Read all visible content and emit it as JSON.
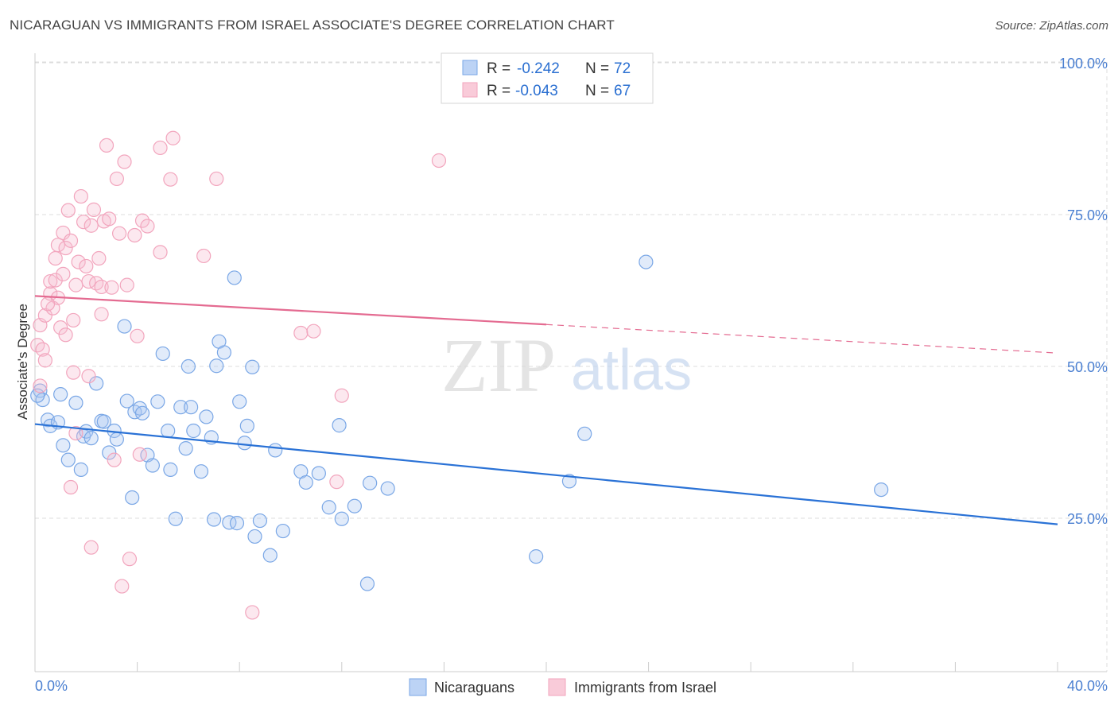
{
  "title": "NICARAGUAN VS IMMIGRANTS FROM ISRAEL ASSOCIATE'S DEGREE CORRELATION CHART",
  "source": "Source: ZipAtlas.com",
  "watermark": {
    "zip": "ZIP",
    "atlas": "atlas"
  },
  "colors": {
    "blue": "#7aa7e6",
    "blue_line": "#2a72d6",
    "pink": "#f2a5bd",
    "pink_line": "#e46b91",
    "tick_text": "#4a7fd1"
  },
  "stats_legend": [
    {
      "r_label": "R =",
      "r": "-0.242",
      "n_label": "N =",
      "n": "72",
      "color": "blue"
    },
    {
      "r_label": "R =",
      "r": "-0.043",
      "n_label": "N =",
      "n": "67",
      "color": "pink"
    }
  ],
  "chart_data": {
    "type": "scatter",
    "title": "NICARAGUAN VS IMMIGRANTS FROM ISRAEL ASSOCIATE'S DEGREE CORRELATION CHART",
    "xlabel": "",
    "ylabel": "Associate's Degree",
    "xlim": [
      0,
      40
    ],
    "ylim": [
      0,
      100
    ],
    "x_tick_labels": [
      "0.0%",
      "40.0%"
    ],
    "y_ticks": [
      25,
      50,
      75,
      100
    ],
    "y_tick_labels": [
      "25.0%",
      "50.0%",
      "75.0%",
      "100.0%"
    ],
    "grid": true,
    "legend_position": "bottom-center",
    "series": [
      {
        "name": "Nicaraguans",
        "color": "blue",
        "trend": {
          "x": [
            0,
            40
          ],
          "y": [
            40.5,
            24.0
          ],
          "dashed_from": null
        },
        "points": [
          [
            0.2,
            46.0
          ],
          [
            0.3,
            44.5
          ],
          [
            0.5,
            41.2
          ],
          [
            0.6,
            40.2
          ],
          [
            0.9,
            40.8
          ],
          [
            1.0,
            45.4
          ],
          [
            1.1,
            37.0
          ],
          [
            1.3,
            34.6
          ],
          [
            1.6,
            44.0
          ],
          [
            1.8,
            33.0
          ],
          [
            1.9,
            38.5
          ],
          [
            2.0,
            39.3
          ],
          [
            2.2,
            38.2
          ],
          [
            2.4,
            47.2
          ],
          [
            2.6,
            41.0
          ],
          [
            2.7,
            40.9
          ],
          [
            2.9,
            35.8
          ],
          [
            3.1,
            39.4
          ],
          [
            3.2,
            38.0
          ],
          [
            3.5,
            56.6
          ],
          [
            3.6,
            44.3
          ],
          [
            3.8,
            28.4
          ],
          [
            3.9,
            42.5
          ],
          [
            4.1,
            43.1
          ],
          [
            4.2,
            42.3
          ],
          [
            4.4,
            35.4
          ],
          [
            4.6,
            33.7
          ],
          [
            4.8,
            44.2
          ],
          [
            5.0,
            52.1
          ],
          [
            5.2,
            39.4
          ],
          [
            5.3,
            33.0
          ],
          [
            5.5,
            24.9
          ],
          [
            5.7,
            43.3
          ],
          [
            5.9,
            36.5
          ],
          [
            6.0,
            50.0
          ],
          [
            6.1,
            43.3
          ],
          [
            6.2,
            39.4
          ],
          [
            6.5,
            32.7
          ],
          [
            6.7,
            41.7
          ],
          [
            6.9,
            38.3
          ],
          [
            7.0,
            24.8
          ],
          [
            7.1,
            50.1
          ],
          [
            7.2,
            54.1
          ],
          [
            7.4,
            52.3
          ],
          [
            7.6,
            24.3
          ],
          [
            7.8,
            64.6
          ],
          [
            7.9,
            24.2
          ],
          [
            8.0,
            44.2
          ],
          [
            8.2,
            37.4
          ],
          [
            8.3,
            40.2
          ],
          [
            8.5,
            49.9
          ],
          [
            8.6,
            22.0
          ],
          [
            8.8,
            24.6
          ],
          [
            9.2,
            18.9
          ],
          [
            9.4,
            36.2
          ],
          [
            9.7,
            22.9
          ],
          [
            10.4,
            32.7
          ],
          [
            10.6,
            30.9
          ],
          [
            11.1,
            32.4
          ],
          [
            11.5,
            26.8
          ],
          [
            11.9,
            40.3
          ],
          [
            12.0,
            24.9
          ],
          [
            12.5,
            27.0
          ],
          [
            13.0,
            14.2
          ],
          [
            13.1,
            30.8
          ],
          [
            13.8,
            29.9
          ],
          [
            19.6,
            18.7
          ],
          [
            20.9,
            31.1
          ],
          [
            21.5,
            38.9
          ],
          [
            23.9,
            67.2
          ],
          [
            33.1,
            29.7
          ],
          [
            0.1,
            45.2
          ]
        ]
      },
      {
        "name": "Immigrants from Israel",
        "color": "pink",
        "trend": {
          "x": [
            0,
            40
          ],
          "y": [
            61.6,
            52.2
          ],
          "dashed_from": 20
        },
        "points": [
          [
            0.1,
            53.5
          ],
          [
            0.2,
            56.8
          ],
          [
            0.3,
            52.8
          ],
          [
            0.4,
            51.0
          ],
          [
            0.4,
            58.4
          ],
          [
            0.6,
            62.0
          ],
          [
            0.6,
            64.0
          ],
          [
            0.7,
            59.6
          ],
          [
            0.8,
            64.2
          ],
          [
            0.8,
            67.8
          ],
          [
            0.9,
            70.0
          ],
          [
            0.9,
            61.3
          ],
          [
            1.0,
            56.4
          ],
          [
            1.1,
            65.2
          ],
          [
            1.1,
            72.0
          ],
          [
            1.2,
            69.5
          ],
          [
            1.3,
            75.7
          ],
          [
            1.4,
            70.7
          ],
          [
            1.5,
            57.6
          ],
          [
            1.5,
            49.0
          ],
          [
            1.6,
            63.4
          ],
          [
            1.7,
            67.2
          ],
          [
            1.8,
            78.0
          ],
          [
            1.9,
            73.8
          ],
          [
            2.0,
            66.5
          ],
          [
            2.1,
            64.0
          ],
          [
            2.1,
            48.4
          ],
          [
            2.2,
            73.2
          ],
          [
            2.3,
            75.8
          ],
          [
            2.4,
            63.7
          ],
          [
            2.5,
            67.8
          ],
          [
            2.6,
            58.6
          ],
          [
            2.6,
            63.1
          ],
          [
            2.7,
            73.9
          ],
          [
            2.8,
            86.4
          ],
          [
            2.9,
            74.3
          ],
          [
            3.0,
            63.0
          ],
          [
            3.1,
            34.6
          ],
          [
            3.2,
            80.9
          ],
          [
            3.3,
            71.9
          ],
          [
            3.4,
            13.8
          ],
          [
            3.5,
            83.7
          ],
          [
            3.6,
            63.4
          ],
          [
            3.7,
            18.3
          ],
          [
            3.9,
            71.6
          ],
          [
            4.0,
            55.0
          ],
          [
            4.1,
            35.5
          ],
          [
            4.2,
            74.0
          ],
          [
            4.4,
            73.1
          ],
          [
            4.9,
            68.8
          ],
          [
            4.9,
            86.0
          ],
          [
            5.3,
            80.8
          ],
          [
            5.4,
            87.6
          ],
          [
            6.6,
            68.2
          ],
          [
            7.1,
            80.9
          ],
          [
            8.5,
            9.5
          ],
          [
            10.4,
            55.5
          ],
          [
            10.9,
            55.8
          ],
          [
            11.8,
            31.0
          ],
          [
            12.0,
            45.2
          ],
          [
            15.8,
            83.9
          ],
          [
            1.4,
            30.1
          ],
          [
            2.2,
            20.2
          ],
          [
            1.6,
            39.0
          ],
          [
            0.5,
            60.3
          ],
          [
            1.2,
            55.2
          ],
          [
            0.2,
            46.8
          ]
        ]
      }
    ]
  },
  "bottom_legend": [
    {
      "label": "Nicaraguans",
      "color": "blue"
    },
    {
      "label": "Immigrants from Israel",
      "color": "pink"
    }
  ]
}
